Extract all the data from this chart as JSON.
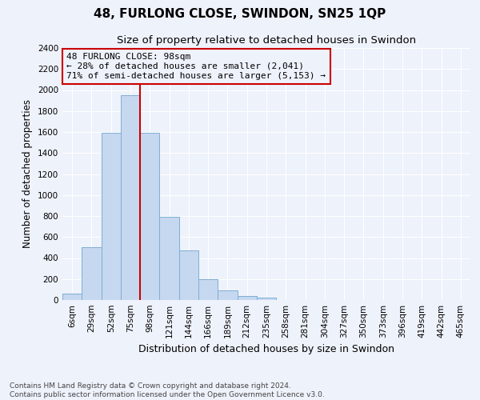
{
  "title": "48, FURLONG CLOSE, SWINDON, SN25 1QP",
  "subtitle": "Size of property relative to detached houses in Swindon",
  "xlabel": "Distribution of detached houses by size in Swindon",
  "ylabel": "Number of detached properties",
  "categories": [
    "6sqm",
    "29sqm",
    "52sqm",
    "75sqm",
    "98sqm",
    "121sqm",
    "144sqm",
    "166sqm",
    "189sqm",
    "212sqm",
    "235sqm",
    "258sqm",
    "281sqm",
    "304sqm",
    "327sqm",
    "350sqm",
    "373sqm",
    "396sqm",
    "419sqm",
    "442sqm",
    "465sqm"
  ],
  "values": [
    60,
    500,
    1590,
    1950,
    1590,
    790,
    470,
    195,
    90,
    35,
    25,
    0,
    0,
    0,
    0,
    0,
    0,
    0,
    0,
    0,
    0
  ],
  "highlight_index": 3,
  "bar_color": "#c5d8f0",
  "bar_edge_color": "#7eaed4",
  "highlight_line_color": "#cc0000",
  "background_color": "#eef2fb",
  "grid_color": "#ffffff",
  "annotation_text": "48 FURLONG CLOSE: 98sqm\n← 28% of detached houses are smaller (2,041)\n71% of semi-detached houses are larger (5,153) →",
  "annotation_box_color": "#cc0000",
  "ylim": [
    0,
    2400
  ],
  "yticks": [
    0,
    200,
    400,
    600,
    800,
    1000,
    1200,
    1400,
    1600,
    1800,
    2000,
    2200,
    2400
  ],
  "footer_line1": "Contains HM Land Registry data © Crown copyright and database right 2024.",
  "footer_line2": "Contains public sector information licensed under the Open Government Licence v3.0.",
  "title_fontsize": 11,
  "subtitle_fontsize": 9.5,
  "xlabel_fontsize": 9,
  "ylabel_fontsize": 8.5,
  "tick_fontsize": 7.5,
  "annotation_fontsize": 8,
  "footer_fontsize": 6.5
}
